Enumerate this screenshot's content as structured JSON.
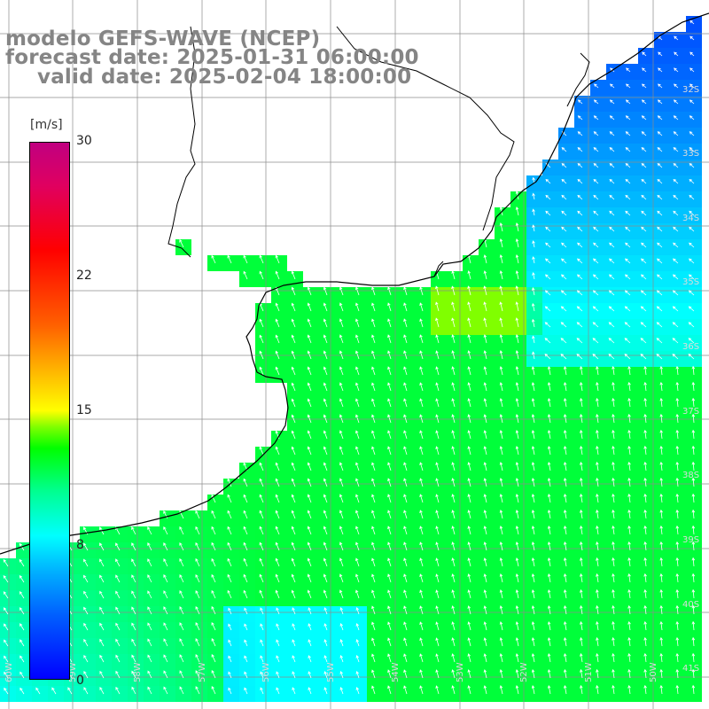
{
  "header": {
    "line1": "modelo GEFS-WAVE (NCEP)",
    "line2": "forecast date: 2025-01-31 06:00:00",
    "line3": "valid date: 2025-02-04 18:00:00"
  },
  "colorbar": {
    "unit": "[m/s]",
    "min": 0,
    "max": 30,
    "ticks": [
      "30",
      "22",
      "15",
      "8",
      "0"
    ],
    "colors": [
      "#0000ff",
      "#00b0ff",
      "#00ffff",
      "#00ff00",
      "#ffff00",
      "#ff6000",
      "#ff0000",
      "#c00080"
    ]
  },
  "map": {
    "land_color": "#ffffff",
    "coast_color": "#000000",
    "grid_color": "#8c8c8c",
    "arrow_color": "#ffffff",
    "lat_labels": [
      "32S",
      "33S",
      "34S",
      "35S",
      "36S",
      "37S",
      "38S",
      "39S",
      "40S",
      "41S"
    ],
    "lon_labels": [
      "60W",
      "59W",
      "58W",
      "57W",
      "56W",
      "55W",
      "54W",
      "53W",
      "52W",
      "51W",
      "50W"
    ],
    "wind_field_note": ""
  }
}
